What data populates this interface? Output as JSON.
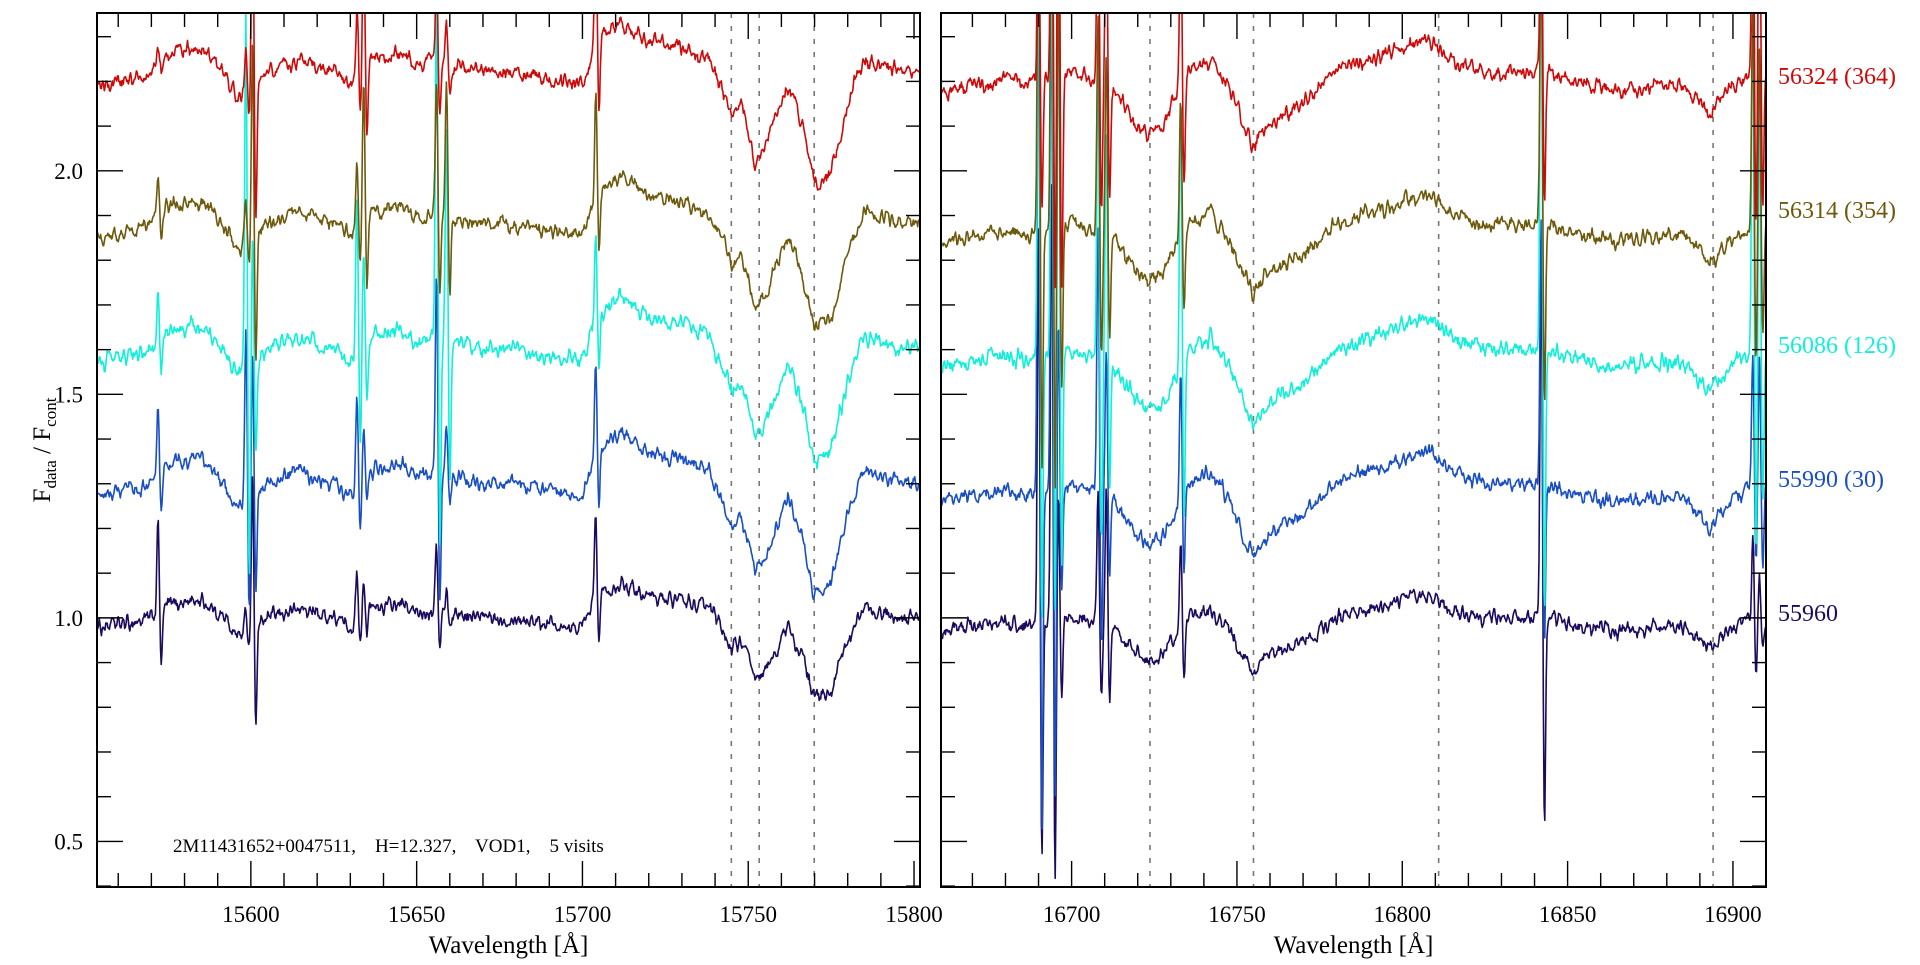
{
  "chart_data": {
    "type": "line",
    "title": "",
    "annotation": "2M11431652+0047511,    H=12.327,    VOD1,    5 visits",
    "ylabel": {
      "main": "F",
      "sub1": "data",
      "sep": " / F",
      "sub2": "cont"
    },
    "ylim": [
      0.398,
      2.353
    ],
    "y_major_ticks": [
      0.5,
      1.0,
      1.5,
      2.0
    ],
    "y_tick_labels": [
      "0.5",
      "1.0",
      "1.5",
      "2.0"
    ],
    "y_minor_step": 0.1,
    "grid": false,
    "series": [
      {
        "name": "55960",
        "label": "55960",
        "color": "#1c0a5e",
        "level": 1.0,
        "amp": 1.0,
        "noise": 0.012
      },
      {
        "name": "55990",
        "label": "55990 (30)",
        "color": "#1a4fc4",
        "level": 1.3,
        "amp": 1.4,
        "noise": 0.012
      },
      {
        "name": "56086",
        "label": "56086 (126)",
        "color": "#10f0d8",
        "level": 1.6,
        "amp": 1.4,
        "noise": 0.013
      },
      {
        "name": "56314",
        "label": "56314 (354)",
        "color": "#6e5a0c",
        "level": 1.88,
        "amp": 1.3,
        "noise": 0.012
      },
      {
        "name": "56324",
        "label": "56324 (364)",
        "color": "#cc0a0a",
        "level": 2.22,
        "amp": 1.4,
        "noise": 0.012
      }
    ],
    "panels": [
      {
        "name": "left",
        "xlabel": "Wavelength [Å]",
        "xlim": [
          15553.6,
          15801.8
        ],
        "x_major_ticks": [
          15600,
          15650,
          15700,
          15750,
          15800
        ],
        "x_tick_labels": [
          "15600",
          "15650",
          "15700",
          "15750",
          "15800"
        ],
        "x_minor_step": 10,
        "reference_lines": [
          15744.9,
          15753.3,
          15769.9
        ],
        "continuum_shape": [
          [
            15554,
            0.98
          ],
          [
            15565,
            0.99
          ],
          [
            15570,
            1.0
          ],
          [
            15575,
            1.03
          ],
          [
            15585,
            1.04
          ],
          [
            15592,
            1.0
          ],
          [
            15596,
            0.96
          ],
          [
            15600,
            0.97
          ],
          [
            15605,
            1.0
          ],
          [
            15615,
            1.02
          ],
          [
            15625,
            1.0
          ],
          [
            15630,
            0.98
          ],
          [
            15635,
            1.02
          ],
          [
            15645,
            1.03
          ],
          [
            15650,
            1.01
          ],
          [
            15655,
            1.02
          ],
          [
            15660,
            1.01
          ],
          [
            15670,
            1.0
          ],
          [
            15680,
            1.0
          ],
          [
            15690,
            0.99
          ],
          [
            15700,
            0.98
          ],
          [
            15705,
            1.06
          ],
          [
            15712,
            1.08
          ],
          [
            15720,
            1.05
          ],
          [
            15730,
            1.04
          ],
          [
            15738,
            1.02
          ],
          [
            15742,
            0.98
          ],
          [
            15745,
            0.93
          ],
          [
            15748,
            0.95
          ],
          [
            15752,
            0.86
          ],
          [
            15756,
            0.89
          ],
          [
            15762,
            0.98
          ],
          [
            15766,
            0.92
          ],
          [
            15770,
            0.82
          ],
          [
            15775,
            0.84
          ],
          [
            15780,
            0.95
          ],
          [
            15785,
            1.02
          ],
          [
            15792,
            1.01
          ],
          [
            15802,
            1.0
          ]
        ],
        "spikes": [
          {
            "at": 15572,
            "amp": [
              0.2,
              0.15,
              0.12,
              0.1,
              0.05
            ]
          },
          {
            "at": 15598.5,
            "amp": [
              0.05,
              0.4,
              0.8,
              0.1,
              0.1
            ]
          },
          {
            "at": 15600.5,
            "amp": [
              0.35,
              0.35,
              0.3,
              0.45,
              0.5
            ]
          },
          {
            "at": 15632,
            "amp": [
              0.1,
              0.2,
              0.35,
              0.15,
              0.15
            ]
          },
          {
            "at": 15634,
            "amp": [
              0.08,
              0.1,
              0.2,
              0.3,
              0.3
            ]
          },
          {
            "at": 15656,
            "amp": [
              0.15,
              0.45,
              0.8,
              0.3,
              0.2
            ]
          },
          {
            "at": 15659,
            "amp": [
              0.05,
              0.1,
              0.5,
              0.3,
              0.1
            ]
          },
          {
            "at": 15704,
            "amp": [
              0.2,
              0.22,
              0.2,
              0.25,
              0.3
            ]
          }
        ]
      },
      {
        "name": "right",
        "xlabel": "Wavelength [Å]",
        "xlim": [
          16660.5,
          16910.0
        ],
        "x_major_ticks": [
          16700,
          16750,
          16800,
          16850,
          16900
        ],
        "x_tick_labels": [
          "16700",
          "16750",
          "16800",
          "16850",
          "16900"
        ],
        "x_minor_step": 10,
        "reference_lines": [
          16723.7,
          16755.0,
          16811.0,
          16894.0
        ],
        "continuum_shape": [
          [
            16660,
            0.97
          ],
          [
            16670,
            0.98
          ],
          [
            16680,
            0.99
          ],
          [
            16688,
            0.98
          ],
          [
            16700,
            1.0
          ],
          [
            16712,
            0.98
          ],
          [
            16718,
            0.93
          ],
          [
            16723,
            0.9
          ],
          [
            16728,
            0.92
          ],
          [
            16735,
            1.0
          ],
          [
            16742,
            1.02
          ],
          [
            16748,
            0.97
          ],
          [
            16755,
            0.88
          ],
          [
            16760,
            0.92
          ],
          [
            16770,
            0.95
          ],
          [
            16780,
            1.0
          ],
          [
            16790,
            1.02
          ],
          [
            16800,
            1.04
          ],
          [
            16808,
            1.05
          ],
          [
            16815,
            1.02
          ],
          [
            16825,
            1.0
          ],
          [
            16835,
            1.0
          ],
          [
            16845,
            1.0
          ],
          [
            16855,
            0.98
          ],
          [
            16865,
            0.97
          ],
          [
            16875,
            0.98
          ],
          [
            16885,
            0.98
          ],
          [
            16893,
            0.93
          ],
          [
            16900,
            0.98
          ],
          [
            16910,
            1.0
          ]
        ],
        "spikes": [
          {
            "at": 16690,
            "amp": [
              0.9,
              1.3,
              1.0,
              0.9,
              0.5
            ]
          },
          {
            "at": 16694,
            "amp": [
              1.0,
              1.2,
              1.0,
              1.0,
              0.8
            ]
          },
          {
            "at": 16696,
            "amp": [
              0.3,
              0.4,
              0.8,
              0.6,
              0.8
            ]
          },
          {
            "at": 16708,
            "amp": [
              0.3,
              0.6,
              0.7,
              0.5,
              0.5
            ]
          },
          {
            "at": 16710.5,
            "amp": [
              0.3,
              0.3,
              0.5,
              0.4,
              0.4
            ]
          },
          {
            "at": 16733,
            "amp": [
              0.2,
              0.3,
              0.6,
              0.3,
              0.4
            ]
          },
          {
            "at": 16842,
            "amp": [
              0.8,
              0.6,
              1.0,
              0.7,
              0.5
            ]
          },
          {
            "at": 16906,
            "amp": [
              0.2,
              0.3,
              0.8,
              0.5,
              0.6
            ]
          },
          {
            "at": 16908,
            "amp": [
              0.1,
              0.3,
              0.6,
              0.4,
              0.5
            ]
          }
        ]
      }
    ]
  }
}
